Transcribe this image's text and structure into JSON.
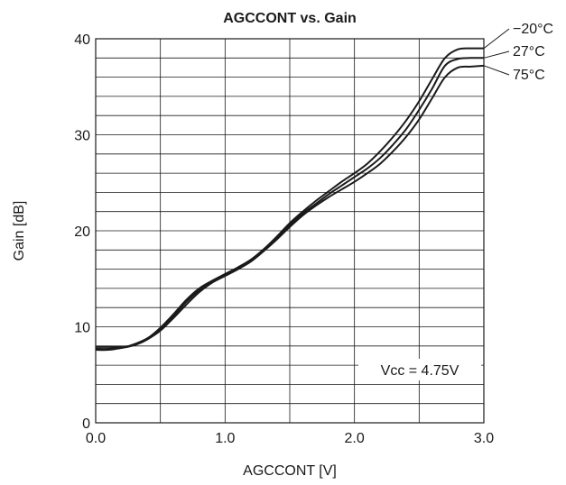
{
  "chart_data": {
    "type": "line",
    "title": "AGCCONT vs. Gain",
    "xlabel": "AGCCONT [V]",
    "ylabel": "Gain [dB]",
    "xlim": [
      0,
      3
    ],
    "ylim": [
      0,
      40
    ],
    "x_ticks": [
      "0.0",
      "1.0",
      "2.0",
      "3.0"
    ],
    "y_ticks": [
      "0",
      "10",
      "20",
      "30",
      "40"
    ],
    "grid": true,
    "x_minor_divisions": 6,
    "y_minor_divisions": 20,
    "legend_placement": "right",
    "annotation": "Vcc = 4.75V",
    "series": [
      {
        "name": "−20°C",
        "x": [
          0,
          0.1,
          0.2,
          0.3,
          0.4,
          0.5,
          0.6,
          0.7,
          0.8,
          0.9,
          1.0,
          1.1,
          1.2,
          1.3,
          1.4,
          1.5,
          1.6,
          1.7,
          1.8,
          1.9,
          2.0,
          2.1,
          2.2,
          2.3,
          2.4,
          2.5,
          2.6,
          2.7,
          2.8,
          2.9,
          3.0
        ],
        "values": [
          7.7,
          7.7,
          7.8,
          8.2,
          8.8,
          9.9,
          11.3,
          12.8,
          14.0,
          14.8,
          15.5,
          16.2,
          17.0,
          18.1,
          19.4,
          20.8,
          22.0,
          23.1,
          24.1,
          25.1,
          26.0,
          27.0,
          28.3,
          29.8,
          31.5,
          33.5,
          35.8,
          38.0,
          38.9,
          39.0,
          39.0
        ]
      },
      {
        "name": "27°C",
        "x": [
          0,
          0.1,
          0.2,
          0.3,
          0.4,
          0.5,
          0.6,
          0.7,
          0.8,
          0.9,
          1.0,
          1.1,
          1.2,
          1.3,
          1.4,
          1.5,
          1.6,
          1.7,
          1.8,
          1.9,
          2.0,
          2.1,
          2.2,
          2.3,
          2.4,
          2.5,
          2.6,
          2.7,
          2.8,
          2.9,
          3.0
        ],
        "values": [
          7.9,
          7.9,
          7.9,
          8.1,
          8.7,
          9.7,
          11.1,
          12.6,
          13.8,
          14.7,
          15.4,
          16.1,
          16.9,
          18.0,
          19.3,
          20.6,
          21.8,
          22.8,
          23.8,
          24.7,
          25.6,
          26.5,
          27.6,
          29.0,
          30.6,
          32.6,
          34.8,
          37.2,
          37.9,
          38.0,
          38.0
        ]
      },
      {
        "name": "75°C",
        "x": [
          0,
          0.1,
          0.2,
          0.3,
          0.4,
          0.5,
          0.6,
          0.7,
          0.8,
          0.9,
          1.0,
          1.1,
          1.2,
          1.3,
          1.4,
          1.5,
          1.6,
          1.7,
          1.8,
          1.9,
          2.0,
          2.1,
          2.2,
          2.3,
          2.4,
          2.5,
          2.6,
          2.7,
          2.8,
          2.9,
          3.0
        ],
        "values": [
          7.6,
          7.6,
          7.8,
          8.1,
          8.7,
          9.6,
          10.9,
          12.3,
          13.6,
          14.6,
          15.3,
          16.0,
          16.8,
          17.9,
          19.1,
          20.4,
          21.6,
          22.6,
          23.5,
          24.3,
          25.1,
          26.0,
          27.0,
          28.3,
          29.8,
          31.6,
          33.8,
          36.0,
          37.0,
          37.1,
          37.2
        ]
      }
    ]
  }
}
